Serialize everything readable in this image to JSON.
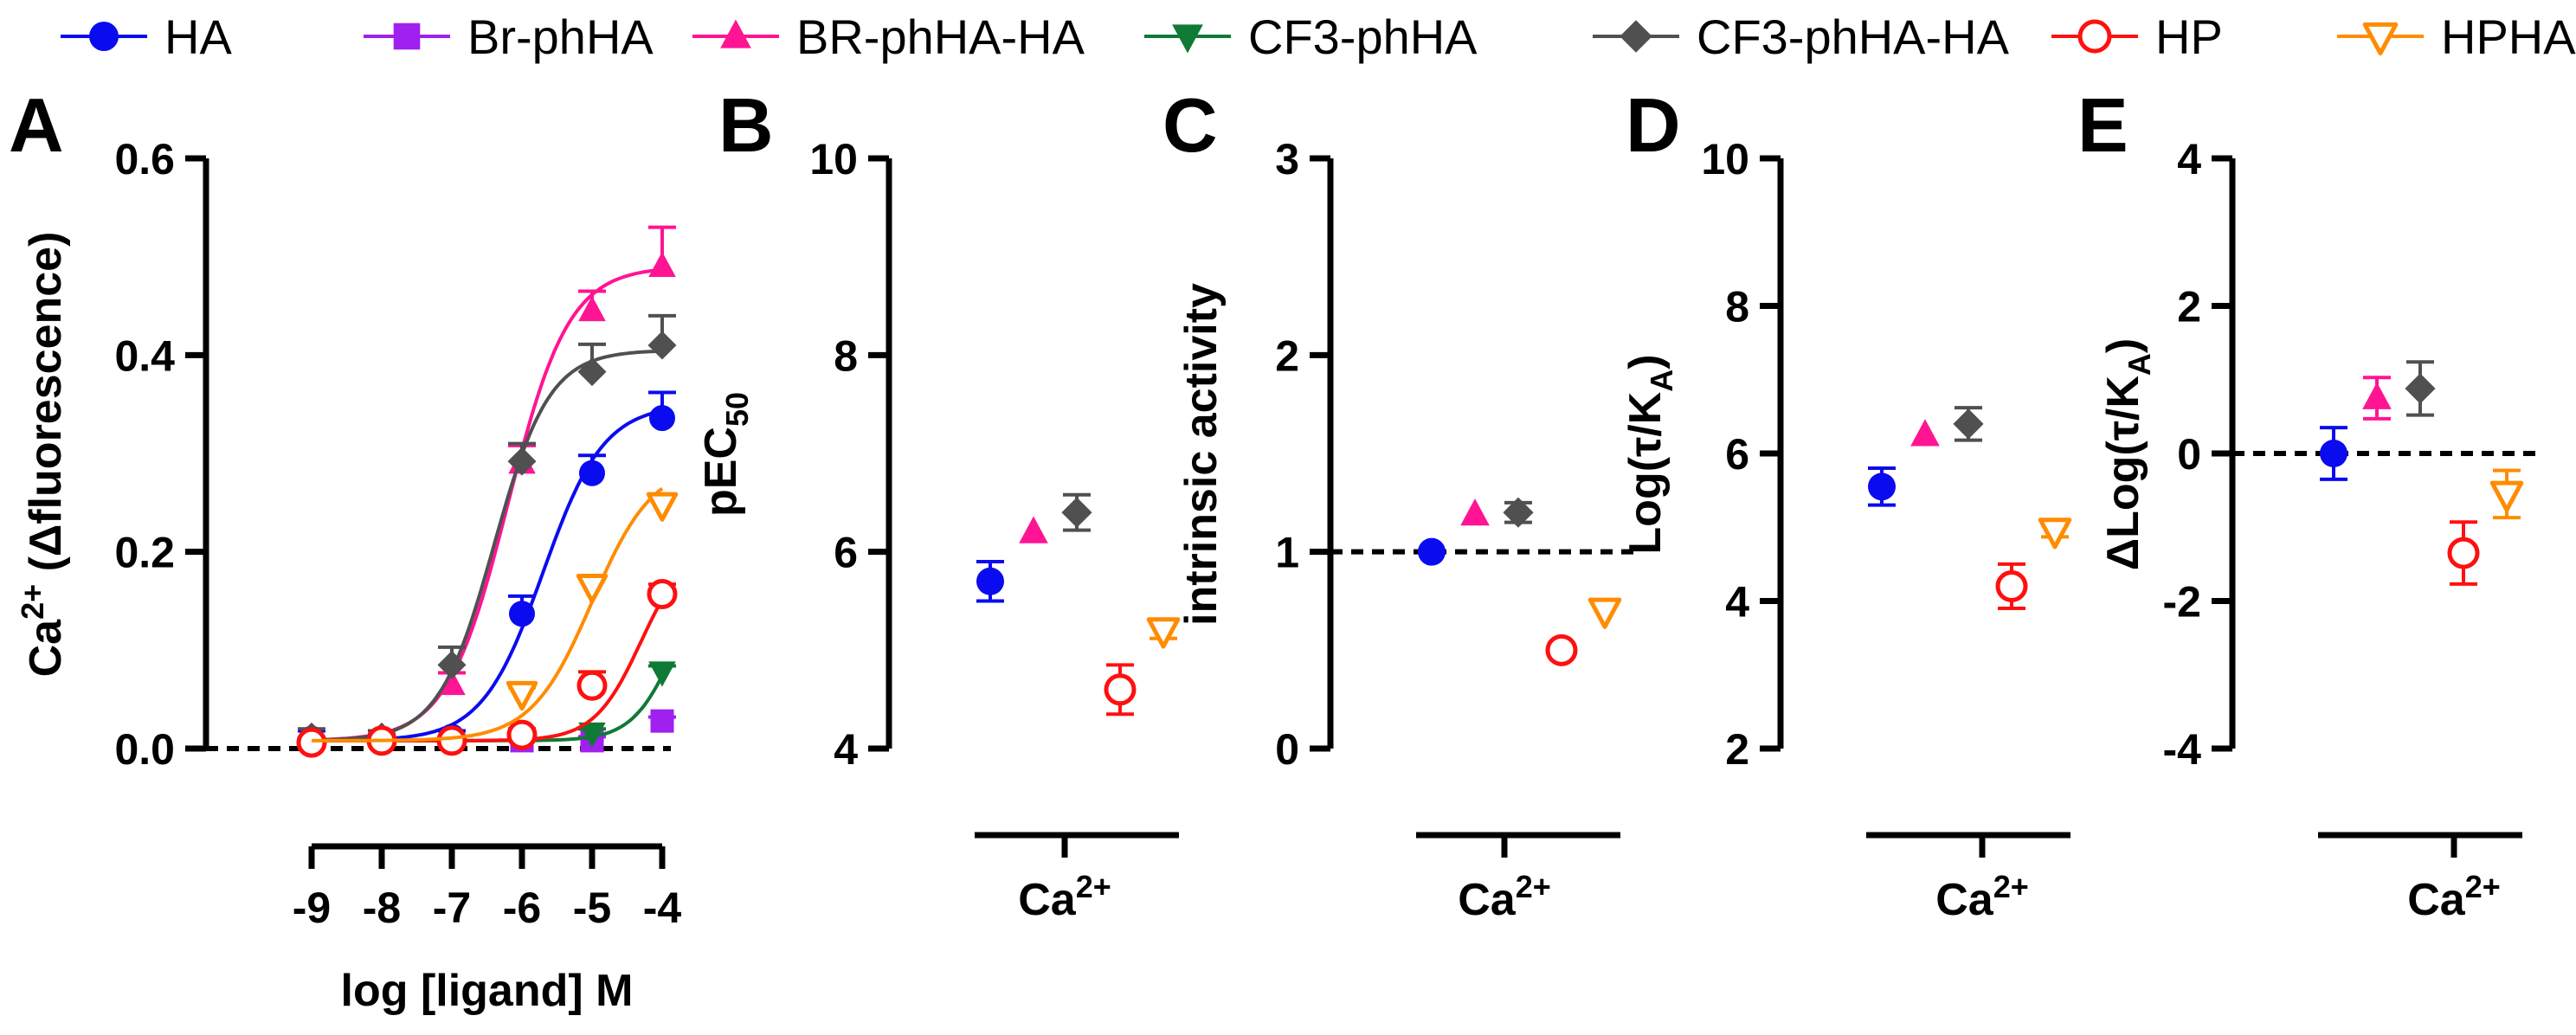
{
  "legend": [
    {
      "key": "HA",
      "label": "HA",
      "color": "#0b0bf0",
      "marker": "circle",
      "filled": true
    },
    {
      "key": "BrphHA",
      "label": "Br-phHA",
      "color": "#a020f0",
      "marker": "square",
      "filled": true
    },
    {
      "key": "BRphHAHA",
      "label": "BR-phHA-HA",
      "color": "#ff1493",
      "marker": "triangle-up",
      "filled": true
    },
    {
      "key": "CF3phHA",
      "label": "CF3-phHA",
      "color": "#0f7a34",
      "marker": "triangle-down",
      "filled": true
    },
    {
      "key": "CF3phHAHA",
      "label": "CF3-phHA-HA",
      "color": "#505050",
      "marker": "diamond",
      "filled": true
    },
    {
      "key": "HP",
      "label": "HP",
      "color": "#ff1010",
      "marker": "circle",
      "filled": false
    },
    {
      "key": "HPHA",
      "label": "HPHA",
      "color": "#ff8c00",
      "marker": "triangle-down",
      "filled": false
    }
  ],
  "chart_data": [
    {
      "panel": "A",
      "type": "line",
      "xlabel": "log [ligand] M",
      "ylabel_main": "Ca",
      "ylabel_sup": "2+",
      "ylabel_rest": " (Δfluorescence)",
      "xlim": [
        -9,
        -4
      ],
      "ylim": [
        0,
        0.6
      ],
      "xticks": [
        -9,
        -8,
        -7,
        -6,
        -5,
        -4
      ],
      "xtick_labels": [
        "-9",
        "-8",
        "-7",
        "-6",
        "-5",
        "-4"
      ],
      "yticks": [
        0,
        0.2,
        0.4,
        0.6
      ],
      "ytick_labels": [
        "0.0",
        "0.2",
        "0.4",
        "0.6"
      ],
      "baseline": 0,
      "series": [
        {
          "key": "HA",
          "x": [
            -9,
            -8,
            -7,
            -6,
            -5,
            -4
          ],
          "y": [
            0.01,
            0.008,
            0.012,
            0.137,
            0.28,
            0.336
          ],
          "err": [
            0.008,
            0.006,
            0.006,
            0.018,
            0.018,
            0.026
          ],
          "fit": {
            "bottom": 0.008,
            "top": 0.35,
            "logec50": -5.7,
            "hill": 1.0
          }
        },
        {
          "key": "BrphHA",
          "x": [
            -6,
            -5,
            -4
          ],
          "y": [
            0.008,
            0.008,
            0.028
          ],
          "err": [
            0.004,
            0.004,
            0.004
          ],
          "fit": null
        },
        {
          "key": "BRphHAHA",
          "x": [
            -7,
            -6,
            -5,
            -4
          ],
          "y": [
            0.065,
            0.29,
            0.445,
            0.49
          ],
          "err": [
            0.012,
            0.018,
            0.02,
            0.04
          ],
          "fit": {
            "bottom": 0.008,
            "top": 0.49,
            "logec50": -6.2,
            "hill": 1.0
          }
        },
        {
          "key": "CF3phHA",
          "x": [
            -5,
            -4
          ],
          "y": [
            0.016,
            0.078
          ],
          "err": [
            0.004,
            0.006
          ],
          "fit": {
            "bottom": 0.008,
            "top": 0.2,
            "logec50": -3.8,
            "hill": 1.4
          }
        },
        {
          "key": "CF3phHAHA",
          "x": [
            -9,
            -8,
            -7,
            -6,
            -5,
            -4
          ],
          "y": [
            0.012,
            0.012,
            0.085,
            0.292,
            0.383,
            0.41
          ],
          "err": [
            0.008,
            0.006,
            0.018,
            0.018,
            0.028,
            0.03
          ],
          "fit": {
            "bottom": 0.008,
            "top": 0.405,
            "logec50": -6.4,
            "hill": 1.1
          }
        },
        {
          "key": "HP",
          "x": [
            -9,
            -8,
            -7,
            -6,
            -5,
            -4
          ],
          "y": [
            0.006,
            0.008,
            0.008,
            0.014,
            0.064,
            0.157
          ],
          "err": [
            0.004,
            0.004,
            0.004,
            0.006,
            0.014,
            0.01
          ],
          "fit": {
            "bottom": 0.008,
            "top": 0.21,
            "logec50": -4.3,
            "hill": 1.3
          }
        },
        {
          "key": "HPHA",
          "x": [
            -6,
            -5,
            -4
          ],
          "y": [
            0.056,
            0.165,
            0.248
          ],
          "err": [
            0.006,
            0.008,
            0.01
          ],
          "fit": {
            "bottom": 0.008,
            "top": 0.29,
            "logec50": -5.0,
            "hill": 1.0
          }
        }
      ]
    },
    {
      "panel": "B",
      "type": "scatter",
      "ylabel_main": "pEC",
      "ylabel_sub": "50",
      "category_main": "Ca",
      "category_sup": "2+",
      "ylim": [
        4,
        10
      ],
      "yticks": [
        4,
        6,
        8,
        10
      ],
      "ytick_labels": [
        "4",
        "6",
        "8",
        "10"
      ],
      "baseline": null,
      "points": [
        {
          "key": "HA",
          "slot": 0,
          "y": 5.7,
          "err": 0.2
        },
        {
          "key": "BRphHAHA",
          "slot": 1,
          "y": 6.2,
          "err": 0
        },
        {
          "key": "CF3phHAHA",
          "slot": 2,
          "y": 6.4,
          "err": 0.18
        },
        {
          "key": "HP",
          "slot": 3,
          "y": 4.6,
          "err": 0.25
        },
        {
          "key": "HPHA",
          "slot": 4,
          "y": 5.2,
          "err": 0.08
        }
      ]
    },
    {
      "panel": "C",
      "type": "scatter",
      "ylabel_main": "intrinsic activity",
      "category_main": "Ca",
      "category_sup": "2+",
      "ylim": [
        0,
        3
      ],
      "yticks": [
        0,
        1,
        2,
        3
      ],
      "ytick_labels": [
        "0",
        "1",
        "2",
        "3"
      ],
      "baseline": 1,
      "points": [
        {
          "key": "HA",
          "slot": 0,
          "y": 1.0,
          "err": 0
        },
        {
          "key": "BRphHAHA",
          "slot": 1,
          "y": 1.19,
          "err": 0
        },
        {
          "key": "CF3phHAHA",
          "slot": 2,
          "y": 1.2,
          "err": 0.05
        },
        {
          "key": "HP",
          "slot": 3,
          "y": 0.5,
          "err": 0
        },
        {
          "key": "HPHA",
          "slot": 4,
          "y": 0.7,
          "err": 0
        }
      ]
    },
    {
      "panel": "D",
      "type": "scatter",
      "ylabel_main": "Log(τ/K",
      "ylabel_sub": "A",
      "ylabel_rest": ")",
      "category_main": "Ca",
      "category_sup": "2+",
      "ylim": [
        2,
        10
      ],
      "yticks": [
        2,
        4,
        6,
        8,
        10
      ],
      "ytick_labels": [
        "2",
        "4",
        "6",
        "8",
        "10"
      ],
      "baseline": null,
      "points": [
        {
          "key": "HA",
          "slot": 0,
          "y": 5.55,
          "err": 0.25
        },
        {
          "key": "BRphHAHA",
          "slot": 1,
          "y": 6.25,
          "err": 0
        },
        {
          "key": "CF3phHAHA",
          "slot": 2,
          "y": 6.4,
          "err": 0.22
        },
        {
          "key": "HP",
          "slot": 3,
          "y": 4.2,
          "err": 0.3
        },
        {
          "key": "HPHA",
          "slot": 4,
          "y": 4.95,
          "err": 0.08
        }
      ]
    },
    {
      "panel": "E",
      "type": "scatter",
      "ylabel_main": "ΔLog(τ/K",
      "ylabel_sub": "A",
      "ylabel_rest": ")",
      "category_main": "Ca",
      "category_sup": "2+",
      "ylim": [
        -4,
        4
      ],
      "yticks": [
        -4,
        -2,
        0,
        2,
        4
      ],
      "ytick_labels": [
        "-4",
        "-2",
        "0",
        "2",
        "4"
      ],
      "baseline": 0,
      "points": [
        {
          "key": "HA",
          "slot": 0,
          "y": 0.0,
          "err": 0.35
        },
        {
          "key": "BRphHAHA",
          "slot": 1,
          "y": 0.75,
          "err": 0.28
        },
        {
          "key": "CF3phHAHA",
          "slot": 2,
          "y": 0.88,
          "err": 0.36
        },
        {
          "key": "HP",
          "slot": 3,
          "y": -1.35,
          "err": 0.42
        },
        {
          "key": "HPHA",
          "slot": 4,
          "y": -0.55,
          "err": 0.32
        }
      ]
    }
  ]
}
